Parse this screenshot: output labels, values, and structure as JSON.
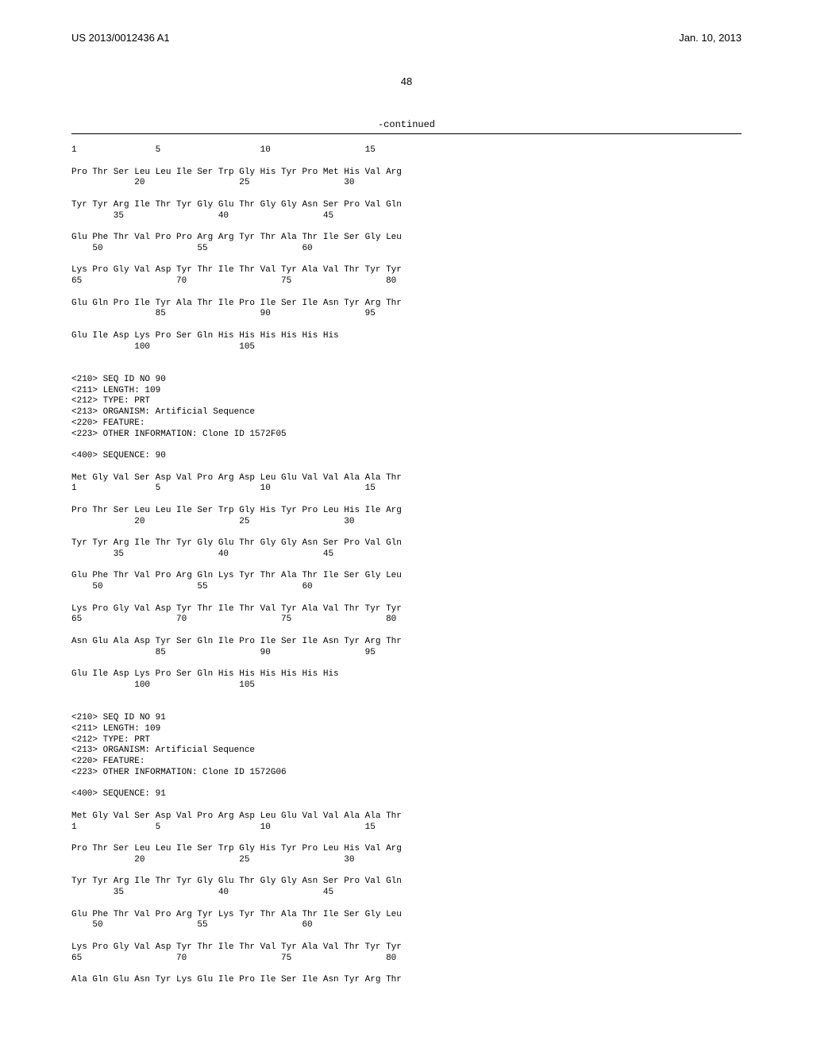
{
  "header": {
    "left": "US 2013/0012436 A1",
    "right": "Jan. 10, 2013"
  },
  "pageNumber": "48",
  "continued": "-continued",
  "seqText": "1               5                   10                  15\n\nPro Thr Ser Leu Leu Ile Ser Trp Gly His Tyr Pro Met His Val Arg\n            20                  25                  30\n\nTyr Tyr Arg Ile Thr Tyr Gly Glu Thr Gly Gly Asn Ser Pro Val Gln\n        35                  40                  45\n\nGlu Phe Thr Val Pro Pro Arg Arg Tyr Thr Ala Thr Ile Ser Gly Leu\n    50                  55                  60\n\nLys Pro Gly Val Asp Tyr Thr Ile Thr Val Tyr Ala Val Thr Tyr Tyr\n65                  70                  75                  80\n\nGlu Gln Pro Ile Tyr Ala Thr Ile Pro Ile Ser Ile Asn Tyr Arg Thr\n                85                  90                  95\n\nGlu Ile Asp Lys Pro Ser Gln His His His His His His\n            100                 105\n\n\n<210> SEQ ID NO 90\n<211> LENGTH: 109\n<212> TYPE: PRT\n<213> ORGANISM: Artificial Sequence\n<220> FEATURE:\n<223> OTHER INFORMATION: Clone ID 1572F05\n\n<400> SEQUENCE: 90\n\nMet Gly Val Ser Asp Val Pro Arg Asp Leu Glu Val Val Ala Ala Thr\n1               5                   10                  15\n\nPro Thr Ser Leu Leu Ile Ser Trp Gly His Tyr Pro Leu His Ile Arg\n            20                  25                  30\n\nTyr Tyr Arg Ile Thr Tyr Gly Glu Thr Gly Gly Asn Ser Pro Val Gln\n        35                  40                  45\n\nGlu Phe Thr Val Pro Arg Gln Lys Tyr Thr Ala Thr Ile Ser Gly Leu\n    50                  55                  60\n\nLys Pro Gly Val Asp Tyr Thr Ile Thr Val Tyr Ala Val Thr Tyr Tyr\n65                  70                  75                  80\n\nAsn Glu Ala Asp Tyr Ser Gln Ile Pro Ile Ser Ile Asn Tyr Arg Thr\n                85                  90                  95\n\nGlu Ile Asp Lys Pro Ser Gln His His His His His His\n            100                 105\n\n\n<210> SEQ ID NO 91\n<211> LENGTH: 109\n<212> TYPE: PRT\n<213> ORGANISM: Artificial Sequence\n<220> FEATURE:\n<223> OTHER INFORMATION: Clone ID 1572G06\n\n<400> SEQUENCE: 91\n\nMet Gly Val Ser Asp Val Pro Arg Asp Leu Glu Val Val Ala Ala Thr\n1               5                   10                  15\n\nPro Thr Ser Leu Leu Ile Ser Trp Gly His Tyr Pro Leu His Val Arg\n            20                  25                  30\n\nTyr Tyr Arg Ile Thr Tyr Gly Glu Thr Gly Gly Asn Ser Pro Val Gln\n        35                  40                  45\n\nGlu Phe Thr Val Pro Arg Tyr Lys Tyr Thr Ala Thr Ile Ser Gly Leu\n    50                  55                  60\n\nLys Pro Gly Val Asp Tyr Thr Ile Thr Val Tyr Ala Val Thr Tyr Tyr\n65                  70                  75                  80\n\nAla Gln Glu Asn Tyr Lys Glu Ile Pro Ile Ser Ile Asn Tyr Arg Thr"
}
